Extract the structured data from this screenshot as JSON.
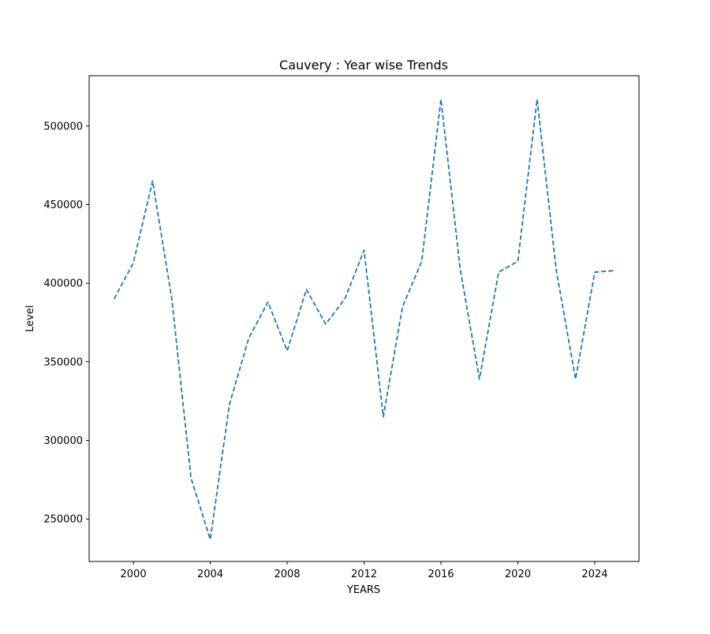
{
  "chart_data": {
    "type": "line",
    "title": "Cauvery : Year wise Trends",
    "xlabel": "YEARS",
    "ylabel": "Level",
    "xlim": [
      1997.7,
      2026.3
    ],
    "ylim": [
      223000,
      532000
    ],
    "x_ticks": [
      2000,
      2004,
      2008,
      2012,
      2016,
      2020,
      2024
    ],
    "y_ticks": [
      250000,
      300000,
      350000,
      400000,
      450000,
      500000
    ],
    "grid": false,
    "line_style": "dashed",
    "series": [
      {
        "color": "#1f77b4",
        "x": [
          1999,
          2000,
          2001,
          2002,
          2003,
          2004,
          2005,
          2006,
          2007,
          2008,
          2009,
          2010,
          2011,
          2012,
          2013,
          2014,
          2015,
          2016,
          2017,
          2018,
          2019,
          2020,
          2021,
          2022,
          2023,
          2024,
          2025
        ],
        "values": [
          390000,
          413000,
          465000,
          390000,
          276000,
          237000,
          323000,
          365000,
          388000,
          357000,
          396000,
          374000,
          390000,
          421000,
          315000,
          385000,
          414000,
          517000,
          409000,
          339000,
          407000,
          414000,
          517000,
          408000,
          339000,
          407000,
          408000
        ]
      }
    ]
  }
}
